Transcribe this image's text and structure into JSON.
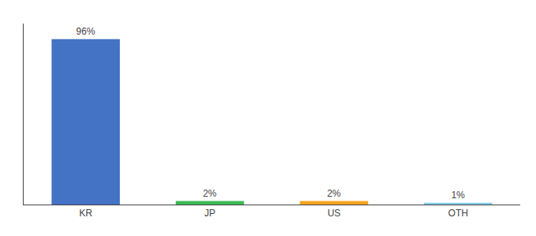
{
  "chart_data": {
    "type": "bar",
    "categories": [
      "KR",
      "JP",
      "US",
      "OTH"
    ],
    "values": [
      96,
      2,
      2,
      1
    ],
    "value_labels": [
      "96%",
      "2%",
      "2%",
      "1%"
    ],
    "colors": [
      "#4472c4",
      "#3cba54",
      "#f4a420",
      "#80cbea"
    ],
    "ylim": [
      0,
      105
    ],
    "data_labels": true,
    "tick_labels": "x",
    "grid": false
  }
}
